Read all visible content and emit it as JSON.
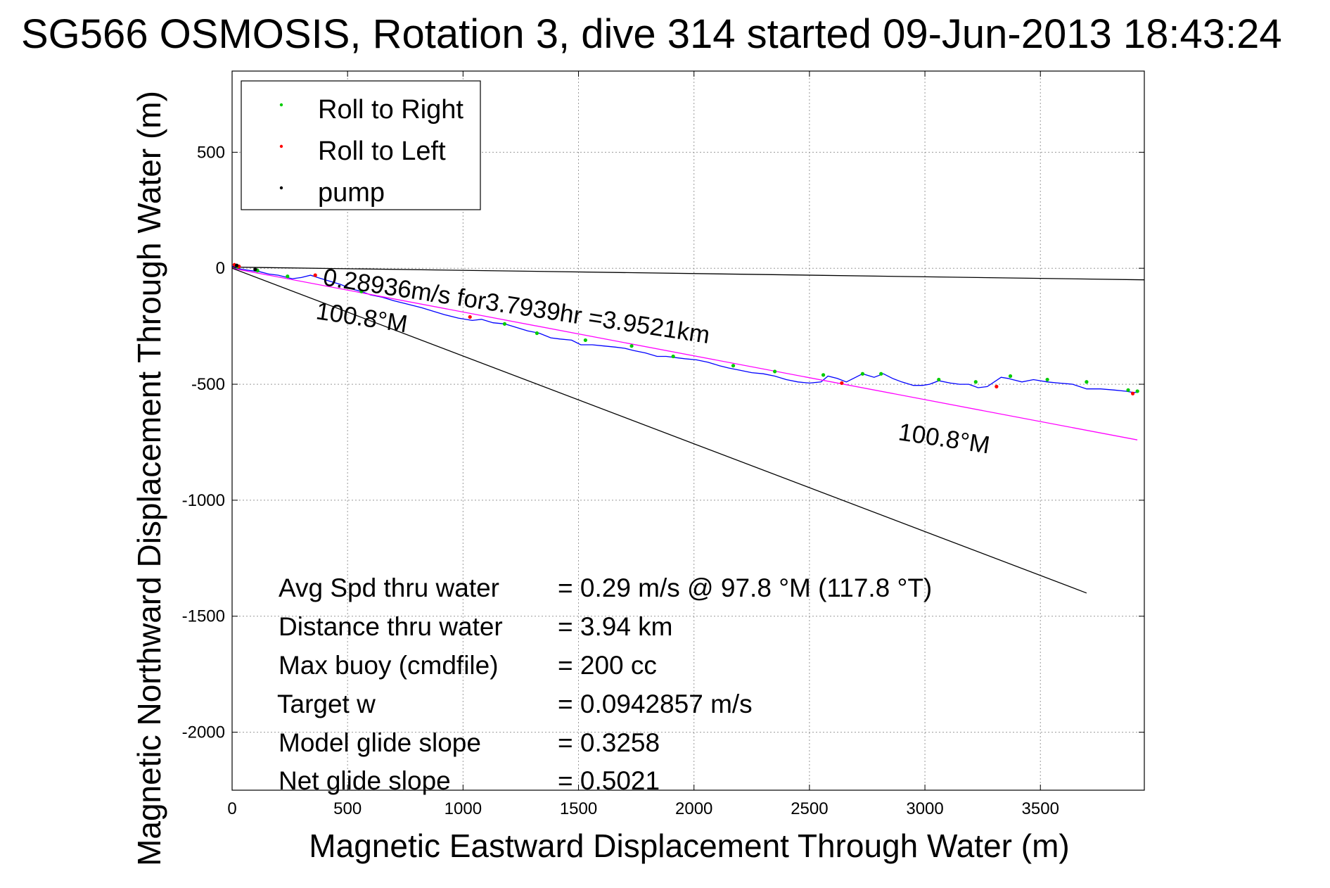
{
  "chart_data": {
    "type": "line",
    "title": "SG566 OSMOSIS, Rotation 3, dive 314 started 09-Jun-2013 18:43:24",
    "xlabel": "Magnetic Eastward Displacement Through Water (m)",
    "ylabel": "Magnetic Northward Displacement Through Water (m)",
    "xlim": [
      0,
      3950
    ],
    "ylim": [
      -2250,
      850
    ],
    "xticks": [
      0,
      500,
      1000,
      1500,
      2000,
      2500,
      3000,
      3500
    ],
    "yticks": [
      500,
      0,
      -500,
      -1000,
      -1500,
      -2000
    ],
    "grid": true,
    "legend": {
      "placement": "top-left",
      "entries": [
        {
          "label": "Roll to Right",
          "color": "#00cc00"
        },
        {
          "label": "Roll to Left",
          "color": "#ff0000"
        },
        {
          "label": "pump",
          "color": "#000000"
        }
      ]
    },
    "series": [
      {
        "type": "line",
        "color": "#0000ff",
        "x": [
          0,
          20,
          45,
          80,
          120,
          160,
          200,
          260,
          300,
          340,
          370,
          420,
          470,
          520,
          560,
          600,
          650,
          700,
          760,
          820,
          870,
          920,
          980,
          1040,
          1080,
          1130,
          1180,
          1230,
          1280,
          1330,
          1380,
          1420,
          1470,
          1510,
          1560,
          1610,
          1660,
          1700,
          1740,
          1790,
          1840,
          1880,
          1920,
          1960,
          2010,
          2060,
          2110,
          2150,
          2200,
          2250,
          2300,
          2350,
          2400,
          2450,
          2500,
          2550,
          2580,
          2620,
          2660,
          2700,
          2730,
          2780,
          2820,
          2860,
          2900,
          2950,
          2990,
          3020,
          3060,
          3110,
          3150,
          3190,
          3230,
          3270,
          3330,
          3360,
          3380,
          3420,
          3470,
          3530,
          3580,
          3640,
          3700,
          3760,
          3820,
          3870,
          3900,
          3920
        ],
        "y": [
          10,
          0,
          -5,
          -10,
          -15,
          -25,
          -30,
          -45,
          -40,
          -30,
          -40,
          -55,
          -70,
          -90,
          -100,
          -115,
          -125,
          -140,
          -155,
          -170,
          -185,
          -200,
          -215,
          -225,
          -220,
          -235,
          -240,
          -255,
          -270,
          -280,
          -300,
          -305,
          -310,
          -330,
          -330,
          -335,
          -340,
          -345,
          -355,
          -365,
          -380,
          -380,
          -385,
          -390,
          -395,
          -405,
          -420,
          -430,
          -440,
          -450,
          -455,
          -465,
          -480,
          -490,
          -495,
          -490,
          -465,
          -475,
          -490,
          -470,
          -455,
          -470,
          -455,
          -475,
          -490,
          -505,
          -505,
          -500,
          -485,
          -495,
          -500,
          -500,
          -515,
          -510,
          -470,
          -475,
          -480,
          -490,
          -480,
          -490,
          -495,
          -500,
          -520,
          -520,
          -525,
          -530,
          -535,
          -535
        ]
      },
      {
        "type": "line",
        "color": "#ff00ff",
        "x": [
          0,
          3920
        ],
        "y": [
          0,
          -740
        ]
      },
      {
        "type": "line",
        "color": "#000000",
        "x": [
          0,
          3950
        ],
        "y": [
          5,
          -50
        ]
      },
      {
        "type": "line",
        "color": "#000000",
        "x": [
          0,
          3700
        ],
        "y": [
          0,
          -1400
        ]
      },
      {
        "type": "scatter",
        "name": "Roll to Right",
        "color": "#00cc00",
        "x": [
          25,
          110,
          240,
          560,
          1180,
          1320,
          1530,
          1730,
          1910,
          2170,
          2350,
          2560,
          2730,
          2810,
          3060,
          3220,
          3370,
          3530,
          3700,
          3880,
          3920
        ],
        "y": [
          5,
          -10,
          -35,
          -100,
          -240,
          -280,
          -310,
          -335,
          -380,
          -420,
          -445,
          -460,
          -455,
          -455,
          -480,
          -490,
          -465,
          -480,
          -490,
          -525,
          -530
        ]
      },
      {
        "type": "scatter",
        "name": "Roll to Left",
        "color": "#ff0000",
        "x": [
          10,
          30,
          360,
          1030,
          2640,
          3310,
          3900
        ],
        "y": [
          15,
          8,
          -30,
          -210,
          -495,
          -510,
          -540
        ]
      },
      {
        "type": "scatter",
        "name": "pump",
        "color": "#000000",
        "x": [
          20,
          100
        ],
        "y": [
          12,
          -5
        ]
      }
    ],
    "annotations": [
      {
        "text": "0.28936m/s for3.7939hr =3.9521km",
        "x": 2300,
        "y": -435
      },
      {
        "text": "100.8°M",
        "x": 580,
        "y": -200
      },
      {
        "text": "100.8°M",
        "x": 3380,
        "y": -720
      }
    ],
    "stats": [
      {
        "label": "Avg Spd thru water",
        "value": "=  0.29 m/s @  97.8 °M (117.8 °T)"
      },
      {
        "label": "Distance thru water",
        "value": "=  3.94 km"
      },
      {
        "label": "Max buoy (cmdfile)",
        "value": "= 200 cc"
      },
      {
        "label": "Target w",
        "value": "= 0.0942857 m/s"
      },
      {
        "label": "Model glide slope",
        "value": "= 0.3258"
      },
      {
        "label": "Net glide slope",
        "value": "= 0.5021"
      }
    ]
  }
}
